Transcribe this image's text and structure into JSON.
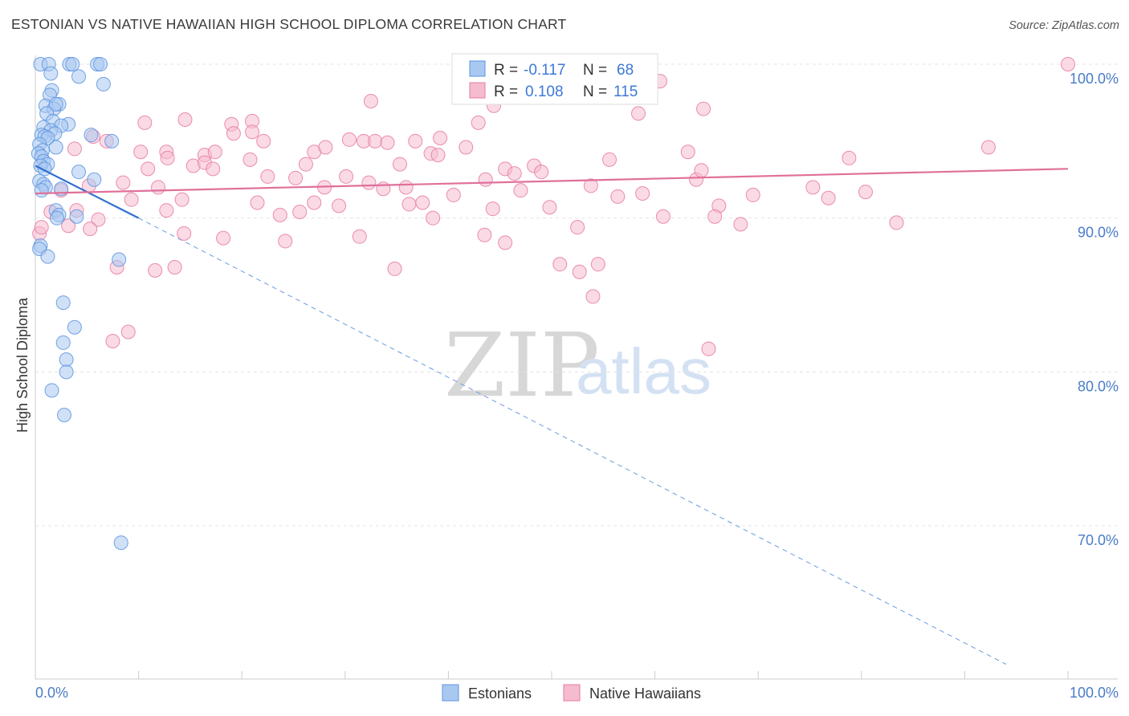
{
  "title": "ESTONIAN VS NATIVE HAWAIIAN HIGH SCHOOL DIPLOMA CORRELATION CHART",
  "source": "Source: ZipAtlas.com",
  "watermark": {
    "zip": "ZIP",
    "atlas": "atlas"
  },
  "legend": {
    "r_label": "R =",
    "n_label": "N =",
    "rows": [
      {
        "r": "-0.117",
        "n": "68"
      },
      {
        "r": "0.108",
        "n": "115"
      }
    ]
  },
  "chart_data": {
    "type": "scatter",
    "title": "ESTONIAN VS NATIVE HAWAIIAN HIGH SCHOOL DIPLOMA CORRELATION CHART",
    "xlabel": "",
    "ylabel": "High School Diploma",
    "xlim": [
      0,
      100
    ],
    "ylim": [
      60,
      100
    ],
    "x_ticks": [
      "0.0%",
      "100.0%"
    ],
    "y_ticks": [
      {
        "value": 100,
        "label": "100.0%"
      },
      {
        "value": 90,
        "label": "90.0%"
      },
      {
        "value": 80,
        "label": "80.0%"
      },
      {
        "value": 70,
        "label": "70.0%"
      }
    ],
    "grid": true,
    "legend_position": "top-center",
    "series": [
      {
        "name": "Estonians",
        "color": "#5b93e0",
        "fill": "#a9c8f0",
        "trend": {
          "solid": [
            [
              0,
              93.4
            ],
            [
              10,
              90.0
            ]
          ],
          "dashed": [
            [
              10,
              90.0
            ],
            [
              94,
              61.0
            ]
          ]
        },
        "points": [
          [
            0.5,
            100
          ],
          [
            1.3,
            100
          ],
          [
            3.3,
            100
          ],
          [
            3.6,
            100
          ],
          [
            6.0,
            100
          ],
          [
            6.3,
            100
          ],
          [
            1.5,
            99.4
          ],
          [
            4.2,
            99.2
          ],
          [
            6.6,
            98.7
          ],
          [
            1.6,
            98.3
          ],
          [
            1.4,
            98.0
          ],
          [
            1.0,
            97.3
          ],
          [
            2.3,
            97.4
          ],
          [
            1.8,
            97.1
          ],
          [
            2.0,
            97.4
          ],
          [
            1.1,
            96.8
          ],
          [
            1.7,
            96.3
          ],
          [
            3.2,
            96.1
          ],
          [
            2.5,
            96.0
          ],
          [
            0.8,
            95.9
          ],
          [
            1.5,
            95.7
          ],
          [
            1.9,
            95.5
          ],
          [
            0.6,
            95.4
          ],
          [
            0.9,
            95.3
          ],
          [
            1.2,
            95.2
          ],
          [
            5.4,
            95.4
          ],
          [
            7.4,
            95.0
          ],
          [
            0.4,
            94.8
          ],
          [
            2.0,
            94.6
          ],
          [
            0.7,
            94.4
          ],
          [
            0.3,
            94.2
          ],
          [
            0.6,
            94.0
          ],
          [
            0.8,
            93.7
          ],
          [
            1.2,
            93.5
          ],
          [
            0.5,
            93.4
          ],
          [
            0.9,
            93.2
          ],
          [
            4.2,
            93.0
          ],
          [
            5.7,
            92.5
          ],
          [
            0.4,
            92.4
          ],
          [
            0.8,
            92.2
          ],
          [
            1.0,
            92.0
          ],
          [
            2.5,
            91.9
          ],
          [
            0.6,
            91.8
          ],
          [
            2.0,
            90.5
          ],
          [
            2.3,
            90.2
          ],
          [
            4.0,
            90.1
          ],
          [
            2.1,
            90.0
          ],
          [
            0.5,
            88.2
          ],
          [
            0.4,
            88.0
          ],
          [
            1.2,
            87.5
          ],
          [
            8.1,
            87.3
          ],
          [
            2.7,
            84.5
          ],
          [
            3.8,
            82.9
          ],
          [
            2.7,
            81.9
          ],
          [
            3.0,
            80.8
          ],
          [
            3.0,
            80.0
          ],
          [
            1.6,
            78.8
          ],
          [
            2.8,
            77.2
          ],
          [
            8.3,
            68.9
          ]
        ]
      },
      {
        "name": "Native Hawaiians",
        "color": "#e87aa0",
        "fill": "#f5bccf",
        "trend": {
          "solid": [
            [
              0,
              91.6
            ],
            [
              100,
              93.2
            ]
          ]
        },
        "points": [
          [
            59.5,
            100
          ],
          [
            100,
            100
          ],
          [
            60.5,
            98.9
          ],
          [
            10.6,
            96.2
          ],
          [
            14.5,
            96.4
          ],
          [
            19.0,
            96.1
          ],
          [
            21.0,
            96.3
          ],
          [
            19.2,
            95.5
          ],
          [
            21.0,
            95.6
          ],
          [
            22.1,
            95.0
          ],
          [
            5.6,
            95.3
          ],
          [
            6.9,
            95.0
          ],
          [
            30.4,
            95.1
          ],
          [
            31.8,
            95.0
          ],
          [
            32.9,
            95.0
          ],
          [
            34.1,
            94.9
          ],
          [
            3.8,
            94.5
          ],
          [
            12.7,
            94.3
          ],
          [
            10.2,
            94.3
          ],
          [
            16.4,
            94.1
          ],
          [
            17.4,
            94.3
          ],
          [
            27.0,
            94.3
          ],
          [
            28.1,
            94.6
          ],
          [
            38.3,
            94.2
          ],
          [
            39.0,
            94.1
          ],
          [
            63.2,
            94.3
          ],
          [
            78.8,
            93.9
          ],
          [
            92.3,
            94.6
          ],
          [
            12.8,
            93.9
          ],
          [
            15.3,
            93.4
          ],
          [
            16.4,
            93.6
          ],
          [
            17.2,
            93.2
          ],
          [
            20.8,
            93.8
          ],
          [
            26.2,
            93.5
          ],
          [
            10.9,
            93.2
          ],
          [
            22.5,
            92.7
          ],
          [
            25.2,
            92.6
          ],
          [
            35.3,
            93.5
          ],
          [
            43.6,
            92.5
          ],
          [
            45.5,
            93.2
          ],
          [
            46.4,
            92.9
          ],
          [
            48.3,
            93.4
          ],
          [
            49.0,
            93.0
          ],
          [
            30.1,
            92.7
          ],
          [
            32.3,
            92.3
          ],
          [
            35.9,
            92.0
          ],
          [
            8.5,
            92.3
          ],
          [
            5.2,
            92.1
          ],
          [
            2.5,
            91.8
          ],
          [
            11.9,
            92.0
          ],
          [
            33.7,
            91.9
          ],
          [
            40.5,
            91.5
          ],
          [
            47.0,
            91.8
          ],
          [
            53.8,
            92.1
          ],
          [
            75.3,
            92.0
          ],
          [
            80.4,
            91.7
          ],
          [
            76.8,
            91.3
          ],
          [
            69.5,
            91.5
          ],
          [
            64.0,
            92.5
          ],
          [
            56.4,
            91.4
          ],
          [
            9.3,
            91.2
          ],
          [
            14.2,
            91.2
          ],
          [
            27.0,
            91.0
          ],
          [
            29.4,
            90.8
          ],
          [
            36.2,
            90.9
          ],
          [
            37.5,
            91.0
          ],
          [
            44.3,
            90.6
          ],
          [
            49.8,
            90.7
          ],
          [
            58.8,
            91.6
          ],
          [
            66.2,
            90.8
          ],
          [
            4.0,
            90.5
          ],
          [
            6.1,
            89.9
          ],
          [
            12.7,
            90.5
          ],
          [
            23.7,
            90.2
          ],
          [
            25.6,
            90.4
          ],
          [
            38.5,
            90.0
          ],
          [
            60.8,
            90.1
          ],
          [
            65.8,
            90.1
          ],
          [
            1.5,
            90.4
          ],
          [
            3.2,
            89.5
          ],
          [
            0.4,
            89.0
          ],
          [
            0.6,
            89.4
          ],
          [
            5.3,
            89.3
          ],
          [
            14.4,
            89.0
          ],
          [
            18.2,
            88.7
          ],
          [
            24.2,
            88.5
          ],
          [
            31.4,
            88.8
          ],
          [
            43.5,
            88.9
          ],
          [
            45.5,
            88.4
          ],
          [
            52.5,
            89.4
          ],
          [
            68.3,
            89.6
          ],
          [
            83.4,
            89.7
          ],
          [
            7.9,
            86.8
          ],
          [
            11.6,
            86.6
          ],
          [
            13.5,
            86.8
          ],
          [
            34.8,
            86.7
          ],
          [
            50.8,
            87.0
          ],
          [
            52.7,
            86.5
          ],
          [
            54.5,
            87.0
          ],
          [
            54.0,
            84.9
          ],
          [
            9.0,
            82.6
          ],
          [
            7.5,
            82.0
          ],
          [
            65.2,
            81.5
          ],
          [
            44.4,
            97.3
          ],
          [
            58.4,
            96.8
          ],
          [
            64.7,
            97.1
          ],
          [
            42.9,
            96.2
          ],
          [
            32.5,
            97.6
          ],
          [
            36.8,
            95.0
          ],
          [
            39.2,
            95.2
          ],
          [
            41.7,
            94.6
          ],
          [
            55.6,
            93.8
          ],
          [
            64.5,
            93.1
          ],
          [
            28.0,
            92.0
          ],
          [
            21.5,
            91.0
          ]
        ]
      }
    ]
  }
}
